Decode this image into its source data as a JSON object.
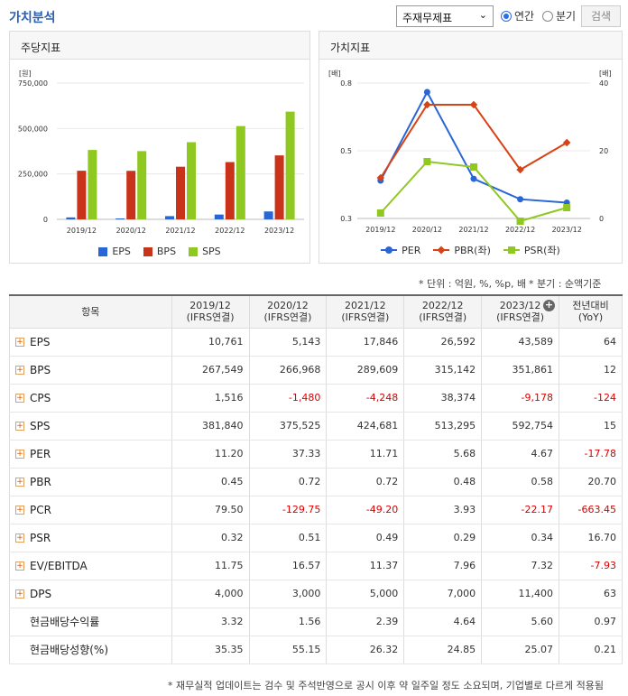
{
  "header": {
    "title": "가치분석",
    "select_value": "주재무제표",
    "radio_annual": "연간",
    "radio_quarter": "분기",
    "search_label": "검색"
  },
  "panels": {
    "left_title": "주당지표",
    "right_title": "가치지표"
  },
  "chart_data": [
    {
      "type": "bar",
      "title": "주당지표",
      "ylabel": "[원]",
      "ylim": [
        0,
        750000
      ],
      "y_ticks": [
        "750,000",
        "500,000",
        "250,000",
        "0"
      ],
      "categories": [
        "2019/12",
        "2020/12",
        "2021/12",
        "2022/12",
        "2023/12"
      ],
      "series": [
        {
          "name": "EPS",
          "color": "#2866d8",
          "values": [
            10761,
            5143,
            17846,
            26592,
            43589
          ]
        },
        {
          "name": "BPS",
          "color": "#c8331a",
          "values": [
            267549,
            266968,
            289609,
            315142,
            351861
          ]
        },
        {
          "name": "SPS",
          "color": "#8ec820",
          "values": [
            381840,
            375525,
            424681,
            513295,
            592754
          ]
        }
      ],
      "legend": "bottom"
    },
    {
      "type": "line",
      "title": "가치지표",
      "ylabel_left": "[배]",
      "ylabel_right": "[배]",
      "ylim_left": [
        0.3,
        0.8
      ],
      "ylim_right": [
        0,
        40
      ],
      "left_ticks": [
        "0.8",
        "0.5",
        "0.3"
      ],
      "right_ticks": [
        "40",
        "20",
        "0"
      ],
      "categories": [
        "2019/12",
        "2020/12",
        "2021/12",
        "2022/12",
        "2023/12"
      ],
      "series": [
        {
          "name": "PER",
          "color": "#2866d8",
          "axis": "right",
          "values": [
            11.2,
            37.33,
            11.71,
            5.68,
            4.67
          ]
        },
        {
          "name": "PBR(좌)",
          "color": "#d84315",
          "axis": "left",
          "values": [
            0.45,
            0.72,
            0.72,
            0.48,
            0.58
          ]
        },
        {
          "name": "PSR(좌)",
          "color": "#8ec820",
          "axis": "left",
          "values": [
            0.32,
            0.51,
            0.49,
            0.29,
            0.34
          ]
        }
      ],
      "legend": "bottom"
    }
  ],
  "notes": {
    "unit": "* 단위 : 억원, %, %p, 배",
    "quarter": "* 분기 : 순액기준"
  },
  "table": {
    "headers": [
      "항목",
      "2019/12\n(IFRS연결)",
      "2020/12\n(IFRS연결)",
      "2021/12\n(IFRS연결)",
      "2022/12\n(IFRS연결)",
      "2023/12\n(IFRS연결)",
      "전년대비\n(YoY)"
    ],
    "rows": [
      {
        "label": "EPS",
        "expand": true,
        "values": [
          "10,761",
          "5,143",
          "17,846",
          "26,592",
          "43,589",
          "64"
        ]
      },
      {
        "label": "BPS",
        "expand": true,
        "values": [
          "267,549",
          "266,968",
          "289,609",
          "315,142",
          "351,861",
          "12"
        ]
      },
      {
        "label": "CPS",
        "expand": true,
        "values": [
          "1,516",
          "-1,480",
          "-4,248",
          "38,374",
          "-9,178",
          "-124"
        ]
      },
      {
        "label": "SPS",
        "expand": true,
        "values": [
          "381,840",
          "375,525",
          "424,681",
          "513,295",
          "592,754",
          "15"
        ]
      },
      {
        "label": "PER",
        "expand": true,
        "values": [
          "11.20",
          "37.33",
          "11.71",
          "5.68",
          "4.67",
          "-17.78"
        ]
      },
      {
        "label": "PBR",
        "expand": true,
        "values": [
          "0.45",
          "0.72",
          "0.72",
          "0.48",
          "0.58",
          "20.70"
        ]
      },
      {
        "label": "PCR",
        "expand": true,
        "values": [
          "79.50",
          "-129.75",
          "-49.20",
          "3.93",
          "-22.17",
          "-663.45"
        ]
      },
      {
        "label": "PSR",
        "expand": true,
        "values": [
          "0.32",
          "0.51",
          "0.49",
          "0.29",
          "0.34",
          "16.70"
        ]
      },
      {
        "label": "EV/EBITDA",
        "expand": true,
        "values": [
          "11.75",
          "16.57",
          "11.37",
          "7.96",
          "7.32",
          "-7.93"
        ]
      },
      {
        "label": "DPS",
        "expand": true,
        "values": [
          "4,000",
          "3,000",
          "5,000",
          "7,000",
          "11,400",
          "63"
        ]
      },
      {
        "label": "현금배당수익률",
        "expand": false,
        "values": [
          "3.32",
          "1.56",
          "2.39",
          "4.64",
          "5.60",
          "0.97"
        ]
      },
      {
        "label": "현금배당성향(%)",
        "expand": false,
        "values": [
          "35.35",
          "55.15",
          "26.32",
          "24.85",
          "25.07",
          "0.21"
        ]
      }
    ]
  },
  "footnote": "* 재무실적 업데이트는 검수 및 주석반영으로 공시 이후 약 일주일 정도 소요되며, 기업별로 다르게 적용됨"
}
